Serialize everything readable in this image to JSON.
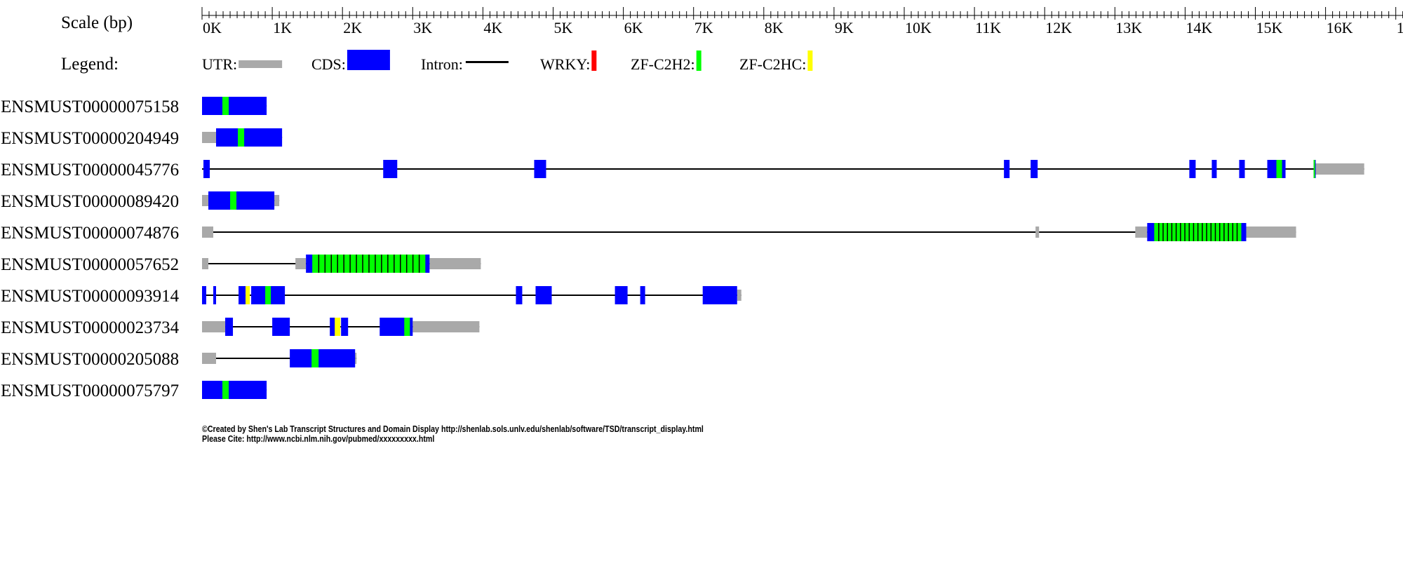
{
  "scale": {
    "label": "Scale (bp)",
    "tick_labels": [
      "0K",
      "1K",
      "2K",
      "3K",
      "4K",
      "5K",
      "6K",
      "7K",
      "8K",
      "9K",
      "10K",
      "11K",
      "12K",
      "13K",
      "14K",
      "15K",
      "16K",
      "1"
    ]
  },
  "legend": {
    "label": "Legend:",
    "items": [
      {
        "label": "UTR:",
        "kind": "utr",
        "color": "#a9a9a9"
      },
      {
        "label": "CDS:",
        "kind": "cds",
        "color": "#0000ff"
      },
      {
        "label": "Intron:",
        "kind": "intron",
        "color": "#000000"
      },
      {
        "label": "WRKY:",
        "kind": "domain",
        "color": "#ff0000"
      },
      {
        "label": "ZF-C2H2:",
        "kind": "domain",
        "color": "#00ff00"
      },
      {
        "label": "ZF-C2HC:",
        "kind": "domain",
        "color": "#ffff00"
      }
    ]
  },
  "colors": {
    "utr": "#a9a9a9",
    "cds": "#0000ff",
    "intron": "#000000",
    "zf_c2h2": "#00ff00",
    "zf_c2hc": "#ffff00",
    "stripe": "#000000"
  },
  "transcripts": [
    {
      "id": "ENSMUST00000075158",
      "span": [
        0,
        920
      ],
      "utr": [],
      "cds": [
        [
          0,
          920
        ]
      ],
      "domains": [
        {
          "range": [
            290,
            380
          ],
          "color": "#00ff00"
        }
      ]
    },
    {
      "id": "ENSMUST00000204949",
      "span": [
        0,
        1140
      ],
      "utr": [
        [
          0,
          200
        ]
      ],
      "cds": [
        [
          200,
          1140
        ]
      ],
      "domains": [
        {
          "range": [
            510,
            600
          ],
          "color": "#00ff00"
        }
      ]
    },
    {
      "id": "ENSMUST00000045776",
      "span": [
        0,
        16550
      ],
      "utr": [
        [
          15850,
          16550
        ]
      ],
      "cds": [
        [
          20,
          110
        ],
        [
          2580,
          2780
        ],
        [
          4730,
          4900
        ],
        [
          11420,
          11500
        ],
        [
          11800,
          11900
        ],
        [
          14060,
          14150
        ],
        [
          14380,
          14450
        ],
        [
          14770,
          14850
        ],
        [
          15170,
          15300
        ],
        [
          15300,
          15430
        ],
        [
          15830,
          15860
        ]
      ],
      "domains": [
        {
          "range": [
            15300,
            15380
          ],
          "color": "#00ff00"
        },
        {
          "range": [
            15830,
            15850
          ],
          "color": "#00ff00"
        }
      ]
    },
    {
      "id": "ENSMUST00000089420",
      "span": [
        0,
        1100
      ],
      "utr": [
        [
          0,
          90
        ],
        [
          1030,
          1100
        ]
      ],
      "cds": [
        [
          90,
          1030
        ]
      ],
      "domains": [
        {
          "range": [
            400,
            490
          ],
          "color": "#00ff00"
        }
      ]
    },
    {
      "id": "ENSMUST00000074876",
      "span": [
        0,
        15580
      ],
      "utr": [
        [
          0,
          160
        ],
        [
          11870,
          11920
        ],
        [
          13290,
          13460
        ],
        [
          14870,
          15580
        ]
      ],
      "cds": [
        [
          13460,
          14870
        ]
      ],
      "domains": [
        {
          "range": [
            13560,
            14800
          ],
          "color": "#00ff00",
          "stripes": 20
        }
      ]
    },
    {
      "id": "ENSMUST00000057652",
      "span": [
        0,
        3970
      ],
      "utr": [
        [
          0,
          90
        ],
        [
          1330,
          1480
        ],
        [
          3240,
          3970
        ]
      ],
      "cds": [
        [
          1480,
          3240
        ]
      ],
      "domains": [
        {
          "range": [
            1570,
            3180
          ],
          "color": "#00ff00",
          "stripes": 18
        }
      ]
    },
    {
      "id": "ENSMUST00000093914",
      "span": [
        0,
        7680
      ],
      "utr": [
        [
          7620,
          7680
        ]
      ],
      "cds": [
        [
          0,
          60
        ],
        [
          160,
          200
        ],
        [
          520,
          620
        ],
        [
          700,
          1180
        ],
        [
          4470,
          4560
        ],
        [
          4750,
          4980
        ],
        [
          5880,
          6060
        ],
        [
          6240,
          6310
        ],
        [
          7130,
          7620
        ]
      ],
      "domains": [
        {
          "range": [
            620,
            680
          ],
          "color": "#ffff00"
        },
        {
          "range": [
            900,
            980
          ],
          "color": "#00ff00"
        }
      ]
    },
    {
      "id": "ENSMUST00000023734",
      "span": [
        0,
        3950
      ],
      "utr": [
        [
          0,
          330
        ],
        [
          3000,
          3950
        ]
      ],
      "cds": [
        [
          330,
          440
        ],
        [
          1000,
          1250
        ],
        [
          1820,
          1900
        ],
        [
          1980,
          2080
        ],
        [
          2530,
          3000
        ]
      ],
      "domains": [
        {
          "range": [
            1890,
            1970
          ],
          "color": "#ffff00"
        },
        {
          "range": [
            2880,
            2960
          ],
          "color": "#00ff00"
        }
      ]
    },
    {
      "id": "ENSMUST00000205088",
      "span": [
        0,
        2200
      ],
      "utr": [
        [
          0,
          200
        ],
        [
          2180,
          2200
        ]
      ],
      "cds": [
        [
          1250,
          2180
        ]
      ],
      "domains": [
        {
          "range": [
            1560,
            1660
          ],
          "color": "#00ff00"
        }
      ]
    },
    {
      "id": "ENSMUST00000075797",
      "span": [
        0,
        920
      ],
      "utr": [],
      "cds": [
        [
          0,
          920
        ]
      ],
      "domains": [
        {
          "range": [
            290,
            380
          ],
          "color": "#00ff00"
        }
      ]
    }
  ],
  "footer": {
    "line1": "©Created by Shen's Lab Transcript Structures and Domain Display http://shenlab.sols.unlv.edu/shenlab/software/TSD/transcript_display.html",
    "line2": "Please Cite: http://www.ncbi.nlm.nih.gov/pubmed/xxxxxxxxx.html"
  }
}
